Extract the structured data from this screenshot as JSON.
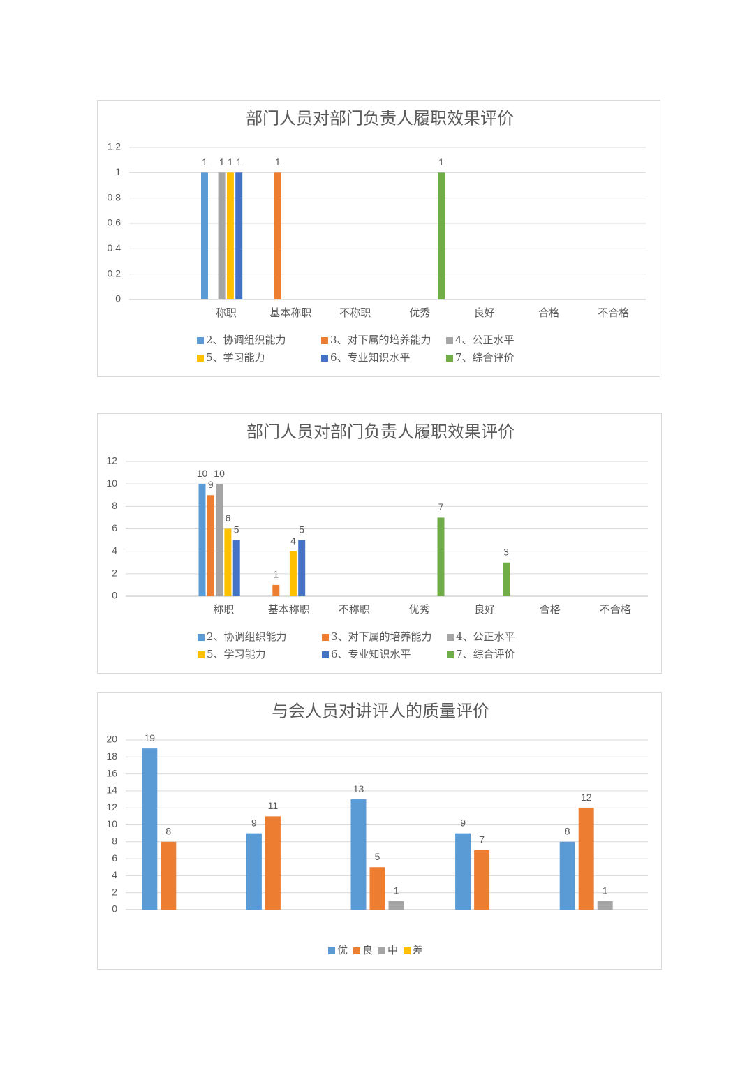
{
  "chart_data": [
    {
      "type": "bar",
      "title": "部门人员对部门负责人履职效果评价",
      "categories": [
        null,
        "称职",
        "基本称职",
        "不称职",
        "优秀",
        "良好",
        "合格",
        "不合格"
      ],
      "series": [
        {
          "name": "2、协调组织能力",
          "color": "#5b9bd5",
          "values": [
            null,
            1,
            null,
            null,
            null,
            null,
            null,
            null
          ]
        },
        {
          "name": "3、对下属的培养能力",
          "color": "#ed7d31",
          "values": [
            null,
            null,
            1,
            null,
            null,
            null,
            null,
            null
          ]
        },
        {
          "name": "4、公正水平",
          "color": "#a5a5a5",
          "values": [
            null,
            1,
            null,
            null,
            null,
            null,
            null,
            null
          ]
        },
        {
          "name": "5、学习能力",
          "color": "#ffc000",
          "values": [
            null,
            1,
            null,
            null,
            null,
            null,
            null,
            null
          ]
        },
        {
          "name": "6、专业知识水平",
          "color": "#4472c4",
          "values": [
            null,
            1,
            null,
            null,
            null,
            null,
            null,
            null
          ]
        },
        {
          "name": "7、综合评价",
          "color": "#70ad47",
          "values": [
            null,
            null,
            null,
            null,
            1,
            null,
            null,
            null
          ]
        }
      ],
      "ylim": [
        0,
        1.2
      ],
      "yticks": [
        0,
        0.2,
        0.4,
        0.6,
        0.8,
        1,
        1.2
      ],
      "grid": true,
      "legend": "bottom"
    },
    {
      "type": "bar",
      "title": "部门人员对部门负责人履职效果评价",
      "categories": [
        null,
        "称职",
        "基本称职",
        "不称职",
        "优秀",
        "良好",
        "合格",
        "不合格"
      ],
      "series": [
        {
          "name": "2、协调组织能力",
          "color": "#5b9bd5",
          "values": [
            null,
            10,
            null,
            null,
            null,
            null,
            null,
            null
          ]
        },
        {
          "name": "3、对下属的培养能力",
          "color": "#ed7d31",
          "values": [
            null,
            9,
            1,
            null,
            null,
            null,
            null,
            null
          ]
        },
        {
          "name": "4、公正水平",
          "color": "#a5a5a5",
          "values": [
            null,
            10,
            null,
            null,
            null,
            null,
            null,
            null
          ]
        },
        {
          "name": "5、学习能力",
          "color": "#ffc000",
          "values": [
            null,
            6,
            4,
            null,
            null,
            null,
            null,
            null
          ]
        },
        {
          "name": "6、专业知识水平",
          "color": "#4472c4",
          "values": [
            null,
            5,
            5,
            null,
            null,
            null,
            null,
            null
          ]
        },
        {
          "name": "7、综合评价",
          "color": "#70ad47",
          "values": [
            null,
            null,
            null,
            null,
            7,
            3,
            null,
            null
          ]
        }
      ],
      "ylim": [
        0,
        12
      ],
      "yticks": [
        0,
        2,
        4,
        6,
        8,
        10,
        12
      ],
      "grid": true,
      "legend": "bottom"
    },
    {
      "type": "bar",
      "title": "与会人员对讲评人的质量评价",
      "categories": [
        null,
        null,
        null,
        null,
        null
      ],
      "series": [
        {
          "name": "优",
          "color": "#5b9bd5",
          "values": [
            19,
            9,
            13,
            9,
            8
          ]
        },
        {
          "name": "良",
          "color": "#ed7d31",
          "values": [
            8,
            11,
            5,
            7,
            12
          ]
        },
        {
          "name": "中",
          "color": "#a5a5a5",
          "values": [
            null,
            null,
            1,
            null,
            1
          ]
        },
        {
          "name": "差",
          "color": "#ffc000",
          "values": [
            null,
            null,
            null,
            null,
            null
          ]
        }
      ],
      "ylim": [
        0,
        20
      ],
      "yticks": [
        0,
        2,
        4,
        6,
        8,
        10,
        12,
        14,
        16,
        18,
        20
      ],
      "grid": true,
      "legend": "bottom"
    }
  ]
}
